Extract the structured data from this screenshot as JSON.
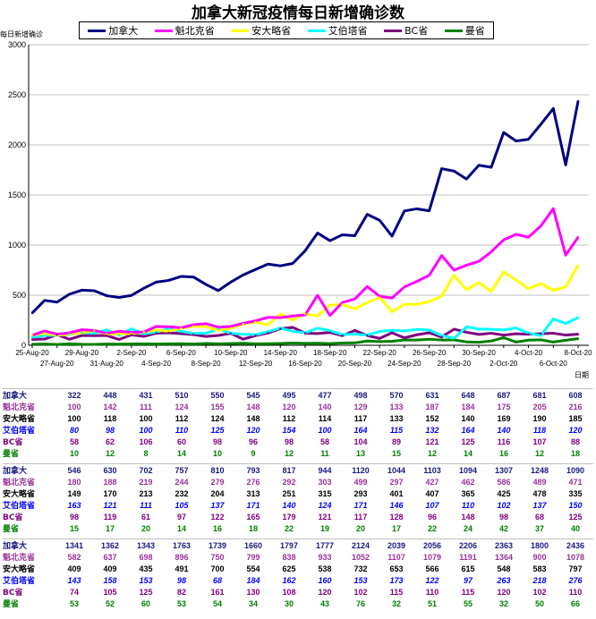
{
  "chart_data": {
    "type": "line",
    "title": "加拿大新冠疫情每日新增确诊数",
    "ylabel": "每日新增确诊",
    "xlabel": "日期",
    "ylim": [
      0,
      3000
    ],
    "yticks": [
      0,
      500,
      1000,
      1500,
      2000,
      2500,
      3000
    ],
    "grid": true,
    "legend_position": "top",
    "x_tick_labels": [
      "25-Aug-20",
      "27-Aug-20",
      "29-Aug-20",
      "31-Aug-20",
      "2-Sep-20",
      "4-Sep-20",
      "6-Sep-20",
      "8-Sep-20",
      "10-Sep-20",
      "12-Sep-20",
      "14-Sep-20",
      "16-Sep-20",
      "18-Sep-20",
      "20-Sep-20",
      "22-Sep-20",
      "24-Sep-20",
      "26-Sep-20",
      "28-Sep-20",
      "30-Sep-20",
      "2-Oct-20",
      "4-Oct-20",
      "6-Oct-20",
      "8-Oct-20"
    ],
    "x_start": "2020-08-25",
    "x_end": "2020-10-08",
    "series": [
      {
        "name": "加拿大",
        "color": "#000080",
        "label_color": "#1a1a80",
        "values": [
          322,
          448,
          431,
          510,
          550,
          545,
          495,
          477,
          498,
          570,
          631,
          648,
          687,
          681,
          608,
          546,
          630,
          702,
          757,
          810,
          793,
          817,
          944,
          1120,
          1044,
          1103,
          1094,
          1307,
          1248,
          1090,
          1341,
          1362,
          1343,
          1763,
          1739,
          1660,
          1797,
          1777,
          2124,
          2039,
          2056,
          2206,
          2363,
          1800,
          2436
        ]
      },
      {
        "name": "魁北克省",
        "color": "#ff00ff",
        "label_color": "#993399",
        "values": [
          100,
          142,
          111,
          124,
          155,
          148,
          120,
          140,
          129,
          133,
          187,
          184,
          175,
          205,
          216,
          180,
          188,
          219,
          244,
          279,
          276,
          292,
          303,
          499,
          297,
          427,
          462,
          586,
          489,
          471,
          582,
          637,
          698,
          896,
          750,
          799,
          838,
          933,
          1052,
          1107,
          1079,
          1191,
          1364,
          900,
          1078
        ]
      },
      {
        "name": "安大略省",
        "color": "#ffff00",
        "label_color": "#000000",
        "values": [
          100,
          118,
          100,
          112,
          124,
          148,
          112,
          114,
          117,
          133,
          152,
          140,
          169,
          190,
          185,
          149,
          170,
          213,
          232,
          204,
          313,
          251,
          315,
          293,
          401,
          407,
          365,
          425,
          478,
          335,
          409,
          409,
          435,
          491,
          700,
          554,
          625,
          538,
          732,
          653,
          566,
          615,
          548,
          583,
          797
        ]
      },
      {
        "name": "艾伯塔省",
        "color": "#00ffff",
        "label_color": "#0000ff",
        "values": [
          80,
          98,
          100,
          110,
          125,
          120,
          154,
          100,
          164,
          115,
          132,
          164,
          140,
          118,
          120,
          163,
          121,
          111,
          105,
          137,
          171,
          140,
          124,
          171,
          146,
          107,
          110,
          102,
          137,
          150,
          143,
          158,
          153,
          98,
          68,
          184,
          162,
          160,
          153,
          173,
          122,
          97,
          263,
          218,
          276
        ]
      },
      {
        "name": "BC省",
        "color": "#800080",
        "label_color": "#800080",
        "values": [
          58,
          62,
          106,
          60,
          98,
          96,
          98,
          58,
          104,
          89,
          121,
          125,
          116,
          107,
          88,
          98,
          119,
          61,
          97,
          122,
          165,
          179,
          121,
          117,
          128,
          96,
          148,
          98,
          68,
          125,
          74,
          105,
          125,
          82,
          161,
          130,
          108,
          120,
          102,
          115,
          110,
          115,
          120,
          102,
          110
        ]
      },
      {
        "name": "曼省",
        "color": "#008000",
        "label_color": "#008000",
        "values": [
          10,
          12,
          8,
          14,
          10,
          9,
          12,
          11,
          13,
          15,
          12,
          14,
          16,
          12,
          18,
          15,
          17,
          20,
          14,
          16,
          18,
          22,
          19,
          20,
          17,
          22,
          24,
          42,
          37,
          40,
          53,
          52,
          60,
          53,
          54,
          34,
          30,
          43,
          76,
          32,
          51,
          55,
          32,
          50,
          66
        ]
      }
    ]
  }
}
